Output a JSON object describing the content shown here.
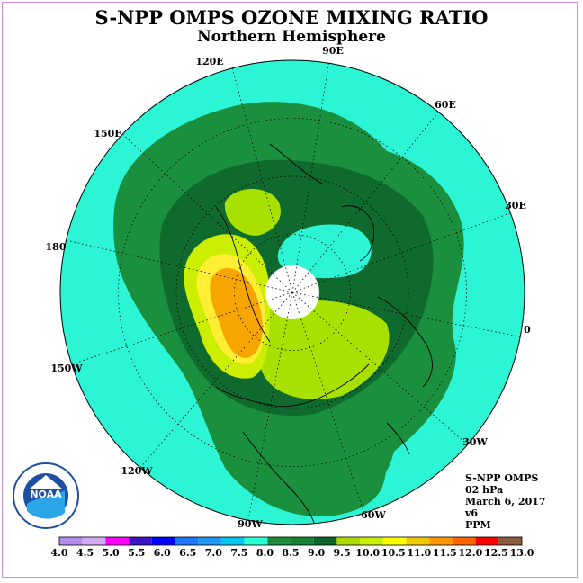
{
  "title": "S-NPP OMPS OZONE MIXING RATIO",
  "subtitle": "Northern Hemisphere",
  "longitude_labels": [
    {
      "text": "90E"
    },
    {
      "text": "60E"
    },
    {
      "text": "30E"
    },
    {
      "text": "0"
    },
    {
      "text": "30W"
    },
    {
      "text": "60W"
    },
    {
      "text": "90W"
    },
    {
      "text": "120W"
    },
    {
      "text": "150W"
    },
    {
      "text": "180"
    },
    {
      "text": "150E"
    },
    {
      "text": "120E"
    }
  ],
  "info": {
    "instrument": "S-NPP OMPS",
    "level": "02 hPa",
    "date": "March 6, 2017",
    "version": "v6",
    "units": "PPM"
  },
  "colorbar": {
    "ticks": [
      "4.0",
      "4.5",
      "5.0",
      "5.5",
      "6.0",
      "6.5",
      "7.0",
      "7.5",
      "8.0",
      "8.5",
      "9.0",
      "9.5",
      "10.0",
      "10.5",
      "11.0",
      "11.5",
      "12.0",
      "12.5",
      "13.0"
    ],
    "colors": [
      "#b48cf0",
      "#d2aaf0",
      "#ff00ff",
      "#3c14c8",
      "#0000ff",
      "#1e78ff",
      "#1e96f5",
      "#00c8f0",
      "#28ffd2",
      "#1e8c3c",
      "#148232",
      "#0a6428",
      "#aadc00",
      "#c8f000",
      "#ffff00",
      "#f0c800",
      "#ff9600",
      "#ff6400",
      "#ff0000",
      "#8c5a3c"
    ]
  },
  "logo": {
    "text": "NOAA"
  },
  "colors": {
    "ocean_cyan": "#2cf5d6",
    "dark_green": "#1a8f3e",
    "darker_green": "#0f6a2e",
    "lime": "#a8e000",
    "yellow_green": "#ccee00",
    "yellow": "#ffee33",
    "orange": "#f7a500"
  }
}
